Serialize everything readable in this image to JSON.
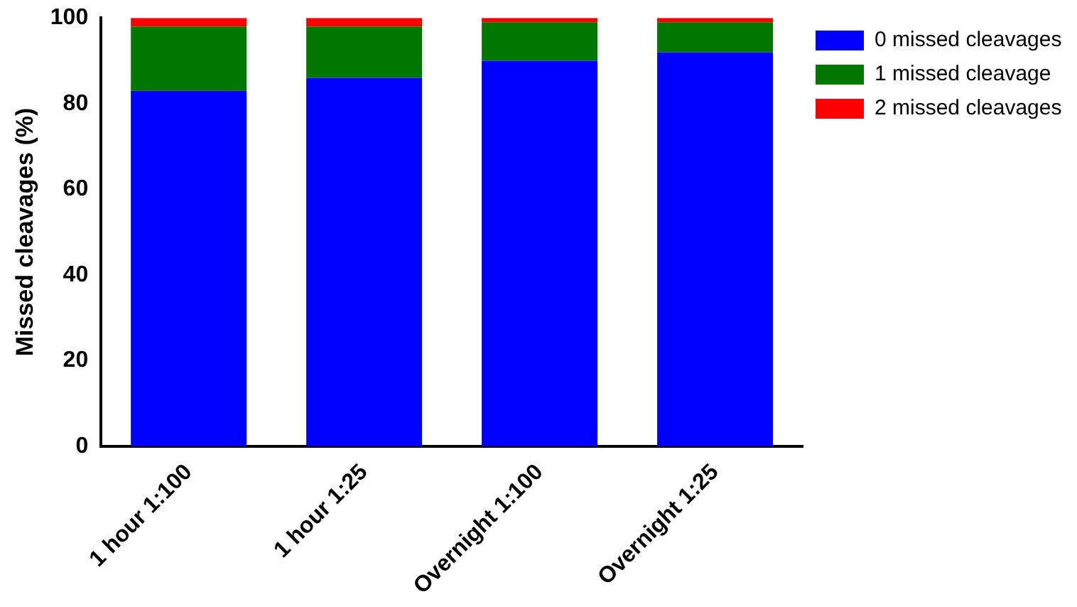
{
  "chart_data": {
    "type": "bar",
    "stacked": true,
    "ylabel": "Missed cleavages (%)",
    "categories": [
      "1 hour 1:100",
      "1 hour 1:25",
      "Overnight 1:100",
      "Overnight 1:25"
    ],
    "series": [
      {
        "name": "0 missed cleavages",
        "color": "#0000ff",
        "values": [
          83,
          86,
          90,
          92
        ]
      },
      {
        "name": "1 missed cleavage",
        "color": "#007800",
        "values": [
          15,
          12,
          9,
          7
        ]
      },
      {
        "name": "2 missed cleavages",
        "color": "#ff0000",
        "values": [
          2,
          2,
          1,
          1
        ]
      }
    ],
    "ylim": [
      0,
      100
    ],
    "yticks": [
      0,
      20,
      40,
      60,
      80,
      100
    ],
    "grid": false,
    "legend": "right"
  }
}
